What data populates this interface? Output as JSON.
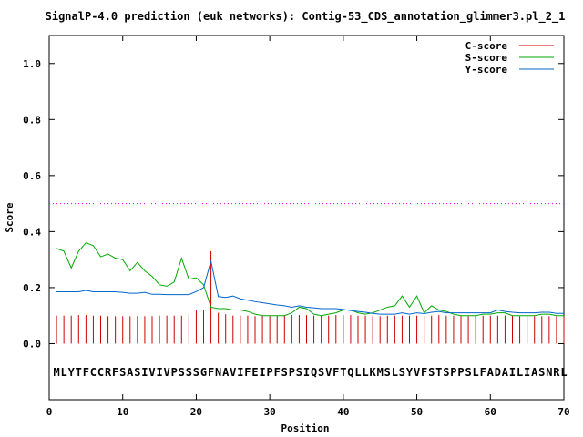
{
  "chart_data": {
    "type": "line",
    "title": "SignalP-4.0 prediction (euk networks): Contig-53_CDS_annotation_glimmer3.pl_2_1",
    "xlabel": "Position",
    "ylabel": "Score",
    "xlim": [
      0,
      70
    ],
    "ylim": [
      -0.2,
      1.1
    ],
    "x_ticks": [
      0,
      10,
      20,
      30,
      40,
      50,
      60,
      70
    ],
    "x_tick_labels": [
      "0",
      "10",
      "20",
      "30",
      "40",
      "50",
      "60",
      "70"
    ],
    "y_ticks": [
      0,
      0.2,
      0.4,
      0.6,
      0.8,
      1.0
    ],
    "y_tick_labels": [
      "0.0",
      "0.2",
      "0.4",
      "0.6",
      "0.8",
      "1.0"
    ],
    "threshold": 0.5,
    "threshold_color": "#e000e0",
    "legend_position": "top-right",
    "grid": false,
    "sequence": [
      "M",
      "L",
      "Y",
      "T",
      "F",
      "C",
      "C",
      "R",
      "F",
      "S",
      "A",
      "S",
      "I",
      "V",
      "I",
      "V",
      "P",
      "S",
      "S",
      "S",
      "G",
      "F",
      "N",
      "A",
      "V",
      "I",
      "F",
      "E",
      "I",
      "P",
      "F",
      "S",
      "P",
      "S",
      "I",
      "Q",
      "S",
      "V",
      "F",
      "T",
      "Q",
      "L",
      "L",
      "K",
      "M",
      "S",
      "L",
      "S",
      "Y",
      "V",
      "F",
      "S",
      "T",
      "S",
      "P",
      "P",
      "S",
      "L",
      "F",
      "A",
      "D",
      "A",
      "I",
      "L",
      "I",
      "A",
      "S",
      "N",
      "R",
      "L"
    ],
    "series": [
      {
        "name": "C-score",
        "kind": "impulse",
        "color": "#cc0000",
        "x": [
          1,
          2,
          3,
          4,
          5,
          6,
          7,
          8,
          9,
          10,
          11,
          12,
          13,
          14,
          15,
          16,
          17,
          18,
          19,
          20,
          21,
          22,
          23,
          24,
          25,
          26,
          27,
          28,
          29,
          30,
          31,
          32,
          33,
          34,
          35,
          36,
          37,
          38,
          39,
          40,
          41,
          42,
          43,
          44,
          45,
          46,
          47,
          48,
          49,
          50,
          51,
          52,
          53,
          54,
          55,
          56,
          57,
          58,
          59,
          60,
          61,
          62,
          63,
          64,
          65,
          66,
          67,
          68,
          69,
          70
        ],
        "values": [
          0.1,
          0.1,
          0.1,
          0.102,
          0.102,
          0.1,
          0.1,
          0.098,
          0.098,
          0.098,
          0.098,
          0.098,
          0.098,
          0.098,
          0.1,
          0.1,
          0.1,
          0.1,
          0.105,
          0.12,
          0.12,
          0.33,
          0.11,
          0.105,
          0.1,
          0.1,
          0.1,
          0.098,
          0.1,
          0.1,
          0.1,
          0.102,
          0.102,
          0.102,
          0.102,
          0.1,
          0.1,
          0.1,
          0.102,
          0.102,
          0.102,
          0.1,
          0.1,
          0.098,
          0.098,
          0.1,
          0.1,
          0.1,
          0.1,
          0.1,
          0.1,
          0.1,
          0.102,
          0.1,
          0.1,
          0.1,
          0.1,
          0.1,
          0.1,
          0.1,
          0.1,
          0.1,
          0.1,
          0.098,
          0.098,
          0.098,
          0.098,
          0.098,
          0.098,
          0.098
        ]
      },
      {
        "name": "S-score",
        "kind": "line",
        "color": "#00aa00",
        "x": [
          1,
          2,
          3,
          4,
          5,
          6,
          7,
          8,
          9,
          10,
          11,
          12,
          13,
          14,
          15,
          16,
          17,
          18,
          19,
          20,
          21,
          22,
          23,
          24,
          25,
          26,
          27,
          28,
          29,
          30,
          31,
          32,
          33,
          34,
          35,
          36,
          37,
          38,
          39,
          40,
          41,
          42,
          43,
          44,
          45,
          46,
          47,
          48,
          49,
          50,
          51,
          52,
          53,
          54,
          55,
          56,
          57,
          58,
          59,
          60,
          61,
          62,
          63,
          64,
          65,
          66,
          67,
          68,
          69,
          70
        ],
        "values": [
          0.34,
          0.33,
          0.27,
          0.33,
          0.36,
          0.35,
          0.31,
          0.32,
          0.305,
          0.3,
          0.26,
          0.29,
          0.26,
          0.24,
          0.21,
          0.205,
          0.22,
          0.305,
          0.23,
          0.235,
          0.21,
          0.13,
          0.125,
          0.125,
          0.12,
          0.12,
          0.115,
          0.105,
          0.1,
          0.1,
          0.1,
          0.1,
          0.11,
          0.13,
          0.125,
          0.105,
          0.1,
          0.105,
          0.11,
          0.12,
          0.12,
          0.11,
          0.105,
          0.11,
          0.12,
          0.13,
          0.135,
          0.17,
          0.13,
          0.17,
          0.11,
          0.135,
          0.12,
          0.115,
          0.105,
          0.1,
          0.1,
          0.1,
          0.105,
          0.105,
          0.11,
          0.11,
          0.1,
          0.1,
          0.1,
          0.1,
          0.105,
          0.105,
          0.1,
          0.1
        ]
      },
      {
        "name": "Y-score",
        "kind": "line",
        "color": "#0066cc",
        "x": [
          1,
          2,
          3,
          4,
          5,
          6,
          7,
          8,
          9,
          10,
          11,
          12,
          13,
          14,
          15,
          16,
          17,
          18,
          19,
          20,
          21,
          22,
          23,
          24,
          25,
          26,
          27,
          28,
          29,
          30,
          31,
          32,
          33,
          34,
          35,
          36,
          37,
          38,
          39,
          40,
          41,
          42,
          43,
          44,
          45,
          46,
          47,
          48,
          49,
          50,
          51,
          52,
          53,
          54,
          55,
          56,
          57,
          58,
          59,
          60,
          61,
          62,
          63,
          64,
          65,
          66,
          67,
          68,
          69,
          70
        ],
        "values": [
          0.185,
          0.185,
          0.185,
          0.185,
          0.19,
          0.185,
          0.185,
          0.185,
          0.185,
          0.183,
          0.18,
          0.18,
          0.183,
          0.176,
          0.176,
          0.175,
          0.175,
          0.175,
          0.175,
          0.186,
          0.2,
          0.295,
          0.168,
          0.165,
          0.17,
          0.16,
          0.155,
          0.15,
          0.146,
          0.142,
          0.138,
          0.135,
          0.13,
          0.135,
          0.13,
          0.128,
          0.125,
          0.125,
          0.125,
          0.122,
          0.118,
          0.115,
          0.112,
          0.108,
          0.105,
          0.105,
          0.105,
          0.11,
          0.105,
          0.11,
          0.107,
          0.112,
          0.115,
          0.11,
          0.11,
          0.11,
          0.11,
          0.11,
          0.11,
          0.11,
          0.12,
          0.115,
          0.112,
          0.11,
          0.11,
          0.11,
          0.112,
          0.112,
          0.108,
          0.108
        ]
      }
    ]
  }
}
